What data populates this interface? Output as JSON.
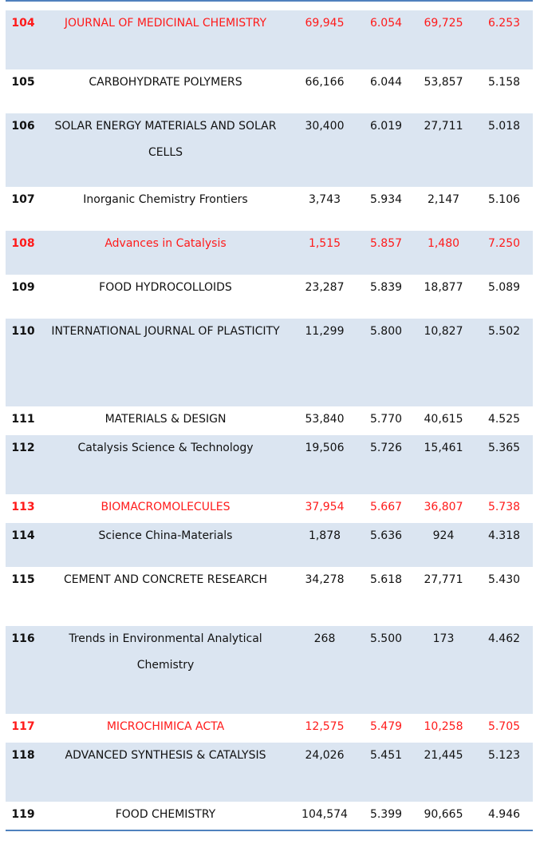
{
  "rows": [
    {
      "rank": "104",
      "title": "JOURNAL OF MEDICINAL CHEMISTRY",
      "v1": "69,945",
      "v2": "6.054",
      "v3": "69,725",
      "v4": "6.253",
      "highlight": true
    },
    {
      "rank": "105",
      "title": "CARBOHYDRATE POLYMERS",
      "v1": "66,166",
      "v2": "6.044",
      "v3": "53,857",
      "v4": "5.158",
      "highlight": false
    },
    {
      "rank": "106",
      "title": "SOLAR ENERGY MATERIALS AND SOLAR CELLS",
      "v1": "30,400",
      "v2": "6.019",
      "v3": "27,711",
      "v4": "5.018",
      "highlight": false
    },
    {
      "rank": "107",
      "title": "Inorganic Chemistry Frontiers",
      "v1": "3,743",
      "v2": "5.934",
      "v3": "2,147",
      "v4": "5.106",
      "highlight": false
    },
    {
      "rank": "108",
      "title": "Advances in Catalysis",
      "v1": "1,515",
      "v2": "5.857",
      "v3": "1,480",
      "v4": "7.250",
      "highlight": true
    },
    {
      "rank": "109",
      "title": "FOOD HYDROCOLLOIDS",
      "v1": "23,287",
      "v2": "5.839",
      "v3": "18,877",
      "v4": "5.089",
      "highlight": false
    },
    {
      "rank": "110",
      "title": "INTERNATIONAL JOURNAL OF PLASTICITY",
      "v1": "11,299",
      "v2": "5.800",
      "v3": "10,827",
      "v4": "5.502",
      "highlight": false
    },
    {
      "rank": "111",
      "title": "MATERIALS & DESIGN",
      "v1": "53,840",
      "v2": "5.770",
      "v3": "40,615",
      "v4": "4.525",
      "highlight": false
    },
    {
      "rank": "112",
      "title": "Catalysis Science & Technology",
      "v1": "19,506",
      "v2": "5.726",
      "v3": "15,461",
      "v4": "5.365",
      "highlight": false
    },
    {
      "rank": "113",
      "title": "BIOMACROMOLECULES",
      "v1": "37,954",
      "v2": "5.667",
      "v3": "36,807",
      "v4": "5.738",
      "highlight": true
    },
    {
      "rank": "114",
      "title": "Science China-Materials",
      "v1": "1,878",
      "v2": "5.636",
      "v3": "924",
      "v4": "4.318",
      "highlight": false
    },
    {
      "rank": "115",
      "title": "CEMENT AND CONCRETE RESEARCH",
      "v1": "34,278",
      "v2": "5.618",
      "v3": "27,771",
      "v4": "5.430",
      "highlight": false
    },
    {
      "rank": "116",
      "title": "Trends in Environmental Analytical Chemistry",
      "v1": "268",
      "v2": "5.500",
      "v3": "173",
      "v4": "4.462",
      "highlight": false
    },
    {
      "rank": "117",
      "title": "MICROCHIMICA ACTA",
      "v1": "12,575",
      "v2": "5.479",
      "v3": "10,258",
      "v4": "5.705",
      "highlight": true
    },
    {
      "rank": "118",
      "title": "ADVANCED SYNTHESIS & CATALYSIS",
      "v1": "24,026",
      "v2": "5.451",
      "v3": "21,445",
      "v4": "5.123",
      "highlight": false
    },
    {
      "rank": "119",
      "title": "FOOD CHEMISTRY",
      "v1": "104,574",
      "v2": "5.399",
      "v3": "90,665",
      "v4": "4.946",
      "highlight": false
    }
  ],
  "colors": {
    "shade": "#dbe5f1",
    "highlight_text": "#ff1a1a",
    "rule": "#4f81bd"
  }
}
